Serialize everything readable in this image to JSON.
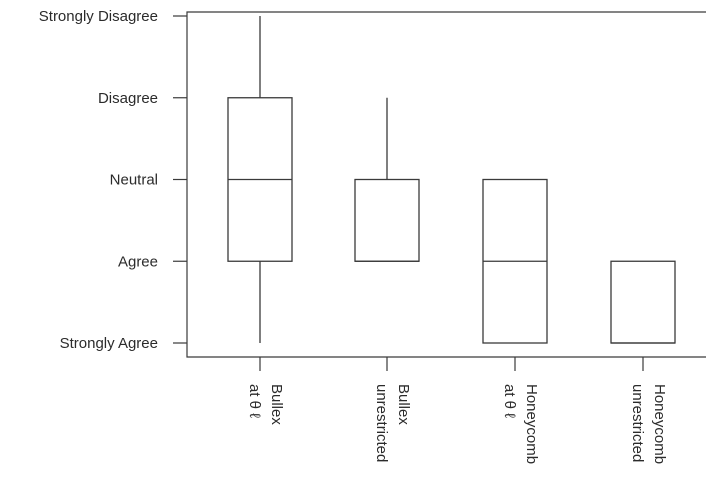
{
  "chart_data": {
    "type": "boxplot",
    "title": "",
    "xlabel": "",
    "ylabel": "",
    "y_ticks": [
      {
        "value": 1,
        "label": "Strongly Agree"
      },
      {
        "value": 2,
        "label": "Agree"
      },
      {
        "value": 3,
        "label": "Neutral"
      },
      {
        "value": 4,
        "label": "Disagree"
      },
      {
        "value": 5,
        "label": "Strongly Disagree"
      }
    ],
    "ylim": [
      1,
      5
    ],
    "categories": [
      {
        "line1": "Bullex",
        "line2": "at θ ℓ",
        "whisker_low": 1,
        "q1": 2,
        "median": 3,
        "q3": 4,
        "whisker_high": 5
      },
      {
        "line1": "Bullex",
        "line2": "unrestricted",
        "whisker_low": 2,
        "q1": 2,
        "median": 2,
        "q3": 3,
        "whisker_high": 4
      },
      {
        "line1": "Honeycomb",
        "line2": "at θ ℓ",
        "whisker_low": 1,
        "q1": 1,
        "median": 2,
        "q3": 3,
        "whisker_high": 3
      },
      {
        "line1": "Honeycomb",
        "line2": "unrestricted",
        "whisker_low": 1,
        "q1": 1,
        "median": 1,
        "q3": 2,
        "whisker_high": 2
      }
    ],
    "grid": false,
    "legend": "none"
  }
}
